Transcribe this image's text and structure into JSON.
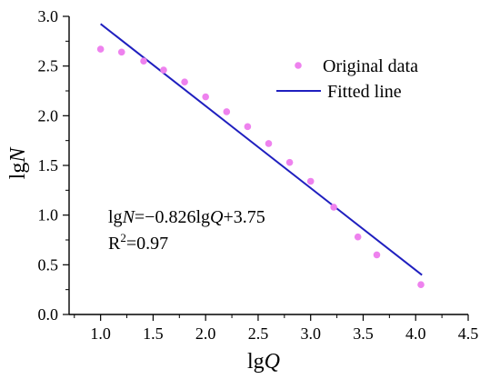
{
  "chart_data": {
    "type": "scatter",
    "xlabel_prefix": "lg",
    "xlabel_var": "Q",
    "ylabel_prefix": "lg",
    "ylabel_var": "N",
    "xlim": [
      0.7,
      4.5
    ],
    "ylim": [
      0.0,
      3.0
    ],
    "xticks": [
      1.0,
      1.5,
      2.0,
      2.5,
      3.0,
      3.5,
      4.0,
      4.5
    ],
    "yticks": [
      0.0,
      0.5,
      1.0,
      1.5,
      2.0,
      2.5,
      3.0
    ],
    "tick_labels_x": [
      "1.0",
      "1.5",
      "2.0",
      "2.5",
      "3.0",
      "3.5",
      "4.0",
      "4.5"
    ],
    "tick_labels_y": [
      "0.0",
      "0.5",
      "1.0",
      "1.5",
      "2.0",
      "2.5",
      "3.0"
    ],
    "grid": false,
    "legend_position": "top-right",
    "colors": {
      "points": "#ee82ee",
      "line": "#1f1fbf",
      "axes": "#000000"
    },
    "series": [
      {
        "name": "Original data",
        "kind": "scatter",
        "x": [
          1.0,
          1.2,
          1.41,
          1.6,
          1.8,
          2.0,
          2.2,
          2.4,
          2.6,
          2.8,
          3.0,
          3.22,
          3.45,
          3.63,
          4.05
        ],
        "y": [
          2.67,
          2.64,
          2.55,
          2.46,
          2.34,
          2.19,
          2.04,
          1.89,
          1.72,
          1.53,
          1.34,
          1.08,
          0.78,
          0.6,
          0.3
        ]
      },
      {
        "name": "Fitted line",
        "kind": "line",
        "x": [
          1.0,
          4.06
        ],
        "y": [
          2.924,
          0.397
        ]
      }
    ],
    "annotations": {
      "equation": {
        "p1": "lg",
        "v1": "N",
        "p2": "=−0.826lg",
        "v2": "Q",
        "p3": "+3.75"
      },
      "r2": {
        "base": "R",
        "sup": "2",
        "rest": "=0.97"
      }
    }
  }
}
